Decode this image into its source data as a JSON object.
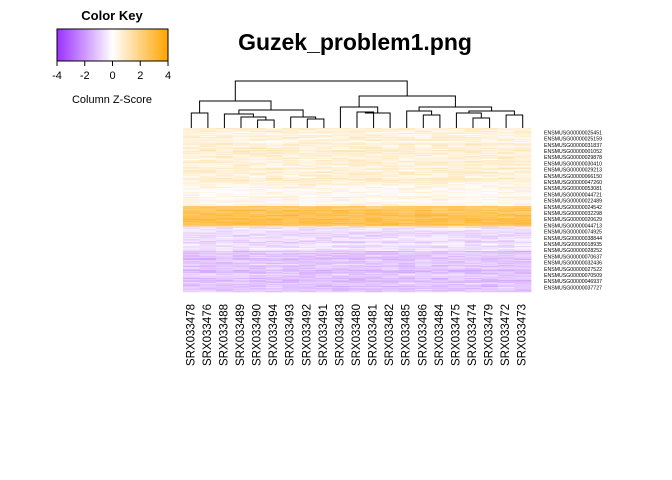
{
  "chart_data": {
    "type": "heatmap",
    "title": "Guzek_problem1.png",
    "color_key": {
      "title": "Color Key",
      "xlabel": "Column Z-Score",
      "ticks": [
        "-4",
        "-2",
        "0",
        "2",
        "4"
      ],
      "range": [
        -4,
        4
      ],
      "colors": [
        "#9b30ff",
        "#ffffff",
        "#ffa500"
      ]
    },
    "columns": [
      "SRX033478",
      "SRX033476",
      "SRX033488",
      "SRX033489",
      "SRX033490",
      "SRX033494",
      "SRX033493",
      "SRX033492",
      "SRX033491",
      "SRX033483",
      "SRX033480",
      "SRX033481",
      "SRX033482",
      "SRX033485",
      "SRX033486",
      "SRX033484",
      "SRX033475",
      "SRX033474",
      "SRX033479",
      "SRX033472",
      "SRX033473"
    ],
    "row_labels": [
      "ENSMUSG00000025451",
      "ENSMUSG00000025159",
      "ENSMUSG00000031837",
      "ENSMUSG00000001052",
      "ENSMUSG00000029878",
      "ENSMUSG00000030410",
      "ENSMUSG00000029213",
      "ENSMUSG00000066150",
      "ENSMUSG00000047260",
      "ENSMUSG00000053081",
      "ENSMUSG00000044721",
      "ENSMUSG00000022489",
      "ENSMUSG00000024542",
      "ENSMUSG00000032298",
      "ENSMUSG00000020629",
      "ENSMUSG00000044713",
      "ENSMUSG00000074925",
      "ENSMUSG00000038844",
      "ENSMUSG00000018935",
      "ENSMUSG00000028252",
      "ENSMUSG00000070637",
      "ENSMUSG00000032436",
      "ENSMUSG00000027522",
      "ENSMUSG00000070509",
      "ENSMUSG00000046937",
      "ENSMUSG00000037727"
    ],
    "bands": [
      {
        "rows": 70,
        "z": 0.6
      },
      {
        "rows": 25,
        "z": 0.25
      },
      {
        "rows": 25,
        "z": 2.6
      },
      {
        "rows": 30,
        "z": -0.6
      },
      {
        "rows": 50,
        "z": -1.15
      }
    ]
  }
}
